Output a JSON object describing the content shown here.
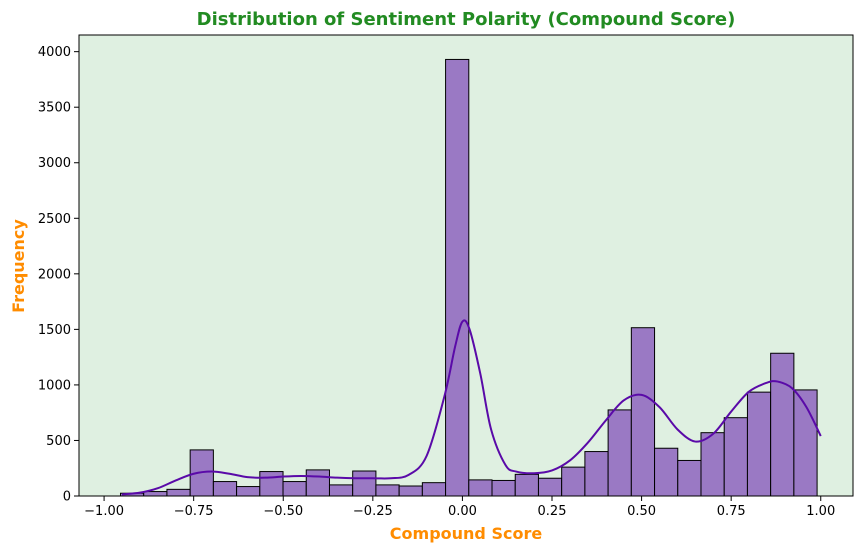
{
  "chart_data": {
    "type": "bar",
    "title": "Distribution of Sentiment Polarity (Compound Score)",
    "xlabel": "Compound Score",
    "ylabel": "Frequency",
    "xlim": [
      -1.07,
      1.09
    ],
    "ylim": [
      0,
      4150
    ],
    "xticks": [
      -1.0,
      -0.75,
      -0.5,
      -0.25,
      0.0,
      0.25,
      0.5,
      0.75,
      1.0
    ],
    "xtick_labels": [
      "−1.00",
      "−0.75",
      "−0.50",
      "−0.25",
      "0.00",
      "0.25",
      "0.50",
      "0.75",
      "1.00"
    ],
    "yticks": [
      0,
      500,
      1000,
      1500,
      2000,
      2500,
      3000,
      3500,
      4000
    ],
    "ytick_labels": [
      "0",
      "500",
      "1000",
      "1500",
      "2000",
      "2500",
      "3000",
      "3500",
      "4000"
    ],
    "grid": false,
    "bins": {
      "start": -0.9542,
      "width": 0.0648,
      "counts": [
        25,
        40,
        60,
        415,
        130,
        85,
        220,
        130,
        235,
        100,
        225,
        100,
        90,
        120,
        3930,
        145,
        140,
        195,
        160,
        260,
        400,
        775,
        1515,
        430,
        320,
        570,
        705,
        935,
        1285,
        955
      ]
    },
    "kde": {
      "x": [
        -0.95,
        -0.9,
        -0.85,
        -0.8,
        -0.75,
        -0.7,
        -0.65,
        -0.6,
        -0.55,
        -0.5,
        -0.45,
        -0.4,
        -0.35,
        -0.3,
        -0.25,
        -0.2,
        -0.15,
        -0.1,
        -0.05,
        -0.02,
        0.0,
        0.02,
        0.05,
        0.08,
        0.12,
        0.15,
        0.2,
        0.25,
        0.3,
        0.35,
        0.4,
        0.45,
        0.5,
        0.55,
        0.6,
        0.65,
        0.7,
        0.75,
        0.8,
        0.85,
        0.88,
        0.92,
        0.96,
        1.0
      ],
      "y": [
        15,
        30,
        70,
        140,
        200,
        220,
        200,
        170,
        165,
        175,
        180,
        175,
        165,
        160,
        160,
        160,
        190,
        360,
        900,
        1350,
        1570,
        1500,
        1100,
        600,
        280,
        220,
        205,
        230,
        320,
        480,
        680,
        860,
        910,
        800,
        600,
        490,
        560,
        760,
        940,
        1020,
        1030,
        970,
        800,
        540
      ]
    },
    "colors": {
      "plot_background": "#dff0e1",
      "bar_fill": "#9a79c4",
      "bar_edge": "#000000",
      "kde_line": "#5a0aa8",
      "title": "#228b22",
      "axis_label": "#ff8c00"
    }
  }
}
